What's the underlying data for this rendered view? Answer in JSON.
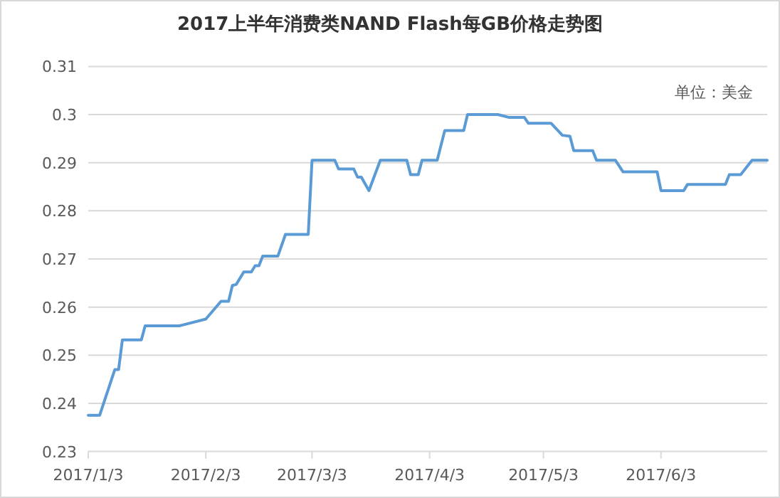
{
  "chart_data": {
    "type": "line",
    "title": "2017上半年消费类NAND Flash每GB价格走势图",
    "annotations": [
      "单位：美金"
    ],
    "x": [
      "2017-01-03",
      "2017-01-06",
      "2017-01-10",
      "2017-01-11",
      "2017-01-12",
      "2017-01-17",
      "2017-01-18",
      "2017-01-27",
      "2017-02-03",
      "2017-02-07",
      "2017-02-09",
      "2017-02-10",
      "2017-02-11",
      "2017-02-13",
      "2017-02-15",
      "2017-02-16",
      "2017-02-17",
      "2017-02-18",
      "2017-02-22",
      "2017-02-24",
      "2017-03-02",
      "2017-03-03",
      "2017-03-09",
      "2017-03-10",
      "2017-03-14",
      "2017-03-15",
      "2017-03-16",
      "2017-03-18",
      "2017-03-21",
      "2017-03-28",
      "2017-03-29",
      "2017-03-31",
      "2017-04-01",
      "2017-04-05",
      "2017-04-07",
      "2017-04-12",
      "2017-04-13",
      "2017-04-21",
      "2017-04-24",
      "2017-04-28",
      "2017-04-29",
      "2017-05-05",
      "2017-05-08",
      "2017-05-10",
      "2017-05-11",
      "2017-05-16",
      "2017-05-17",
      "2017-05-22",
      "2017-05-24",
      "2017-06-02",
      "2017-06-03",
      "2017-06-09",
      "2017-06-10",
      "2017-06-20",
      "2017-06-21",
      "2017-06-24",
      "2017-06-27",
      "2017-07-01"
    ],
    "series": [
      {
        "color": "#5b9bd5",
        "values": [
          0.2375,
          0.2375,
          0.247,
          0.247,
          0.2532,
          0.2532,
          0.2561,
          0.2561,
          0.2575,
          0.2612,
          0.2612,
          0.2645,
          0.2647,
          0.2673,
          0.2673,
          0.2686,
          0.2686,
          0.2706,
          0.2706,
          0.2751,
          0.2751,
          0.2905,
          0.2905,
          0.2887,
          0.2887,
          0.287,
          0.287,
          0.2842,
          0.2905,
          0.2905,
          0.2875,
          0.2875,
          0.2905,
          0.2905,
          0.2967,
          0.2967,
          0.3,
          0.3,
          0.2994,
          0.2994,
          0.2982,
          0.2982,
          0.2957,
          0.2955,
          0.2925,
          0.2925,
          0.2905,
          0.2905,
          0.2881,
          0.2881,
          0.2842,
          0.2842,
          0.2855,
          0.2855,
          0.2875,
          0.2875,
          0.2905,
          0.2905
        ]
      }
    ],
    "xlim": [
      "2017-01-03",
      "2017-07-01"
    ],
    "xticks": [
      {
        "value": "2017-01-03",
        "label": "2017/1/3"
      },
      {
        "value": "2017-02-03",
        "label": "2017/2/3"
      },
      {
        "value": "2017-03-03",
        "label": "2017/3/3"
      },
      {
        "value": "2017-04-03",
        "label": "2017/4/3"
      },
      {
        "value": "2017-05-03",
        "label": "2017/5/3"
      },
      {
        "value": "2017-06-03",
        "label": "2017/6/3"
      }
    ],
    "ylim": [
      0.23,
      0.31
    ],
    "yticks": [
      0.23,
      0.24,
      0.25,
      0.26,
      0.27,
      0.28,
      0.29,
      0.3,
      0.31
    ],
    "grid": "y"
  }
}
